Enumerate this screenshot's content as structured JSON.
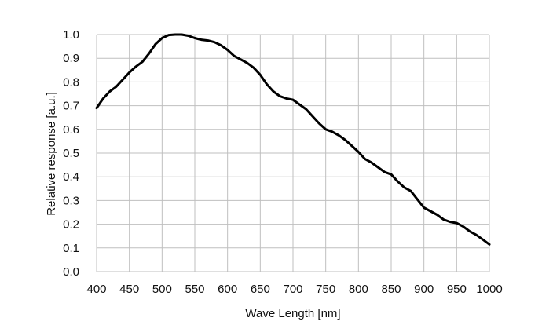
{
  "chart_data": {
    "type": "line",
    "title": "",
    "xlabel": "Wave Length [nm]",
    "ylabel": "Relative response [a.u.]",
    "xlim": [
      400,
      1000
    ],
    "ylim": [
      0.0,
      1.0
    ],
    "x_ticks": [
      "400",
      "450",
      "500",
      "550",
      "600",
      "650",
      "700",
      "750",
      "800",
      "850",
      "900",
      "950",
      "1000"
    ],
    "y_ticks": [
      "0.0",
      "0.1",
      "0.2",
      "0.3",
      "0.4",
      "0.5",
      "0.6",
      "0.7",
      "0.8",
      "0.9",
      "1.0"
    ],
    "grid": true,
    "legend": "none",
    "line_color": "#000000",
    "grid_color": "#bfbfbf",
    "series": [
      {
        "x": [
          400,
          410,
          420,
          430,
          440,
          450,
          460,
          470,
          480,
          490,
          500,
          510,
          520,
          530,
          540,
          550,
          560,
          570,
          580,
          590,
          600,
          610,
          620,
          630,
          640,
          650,
          660,
          670,
          680,
          690,
          700,
          710,
          720,
          730,
          740,
          750,
          760,
          770,
          780,
          790,
          800,
          810,
          820,
          830,
          840,
          850,
          860,
          870,
          880,
          890,
          900,
          910,
          920,
          930,
          940,
          950,
          960,
          970,
          980,
          990,
          1000
        ],
        "y": [
          0.69,
          0.73,
          0.76,
          0.78,
          0.81,
          0.84,
          0.865,
          0.885,
          0.92,
          0.96,
          0.985,
          0.998,
          1.0,
          1.0,
          0.995,
          0.985,
          0.978,
          0.975,
          0.968,
          0.955,
          0.935,
          0.91,
          0.895,
          0.88,
          0.86,
          0.83,
          0.79,
          0.76,
          0.74,
          0.73,
          0.725,
          0.705,
          0.685,
          0.655,
          0.625,
          0.6,
          0.59,
          0.575,
          0.555,
          0.53,
          0.505,
          0.475,
          0.46,
          0.44,
          0.42,
          0.41,
          0.38,
          0.355,
          0.34,
          0.305,
          0.27,
          0.255,
          0.24,
          0.22,
          0.21,
          0.205,
          0.19,
          0.17,
          0.155,
          0.135,
          0.115
        ]
      }
    ]
  }
}
